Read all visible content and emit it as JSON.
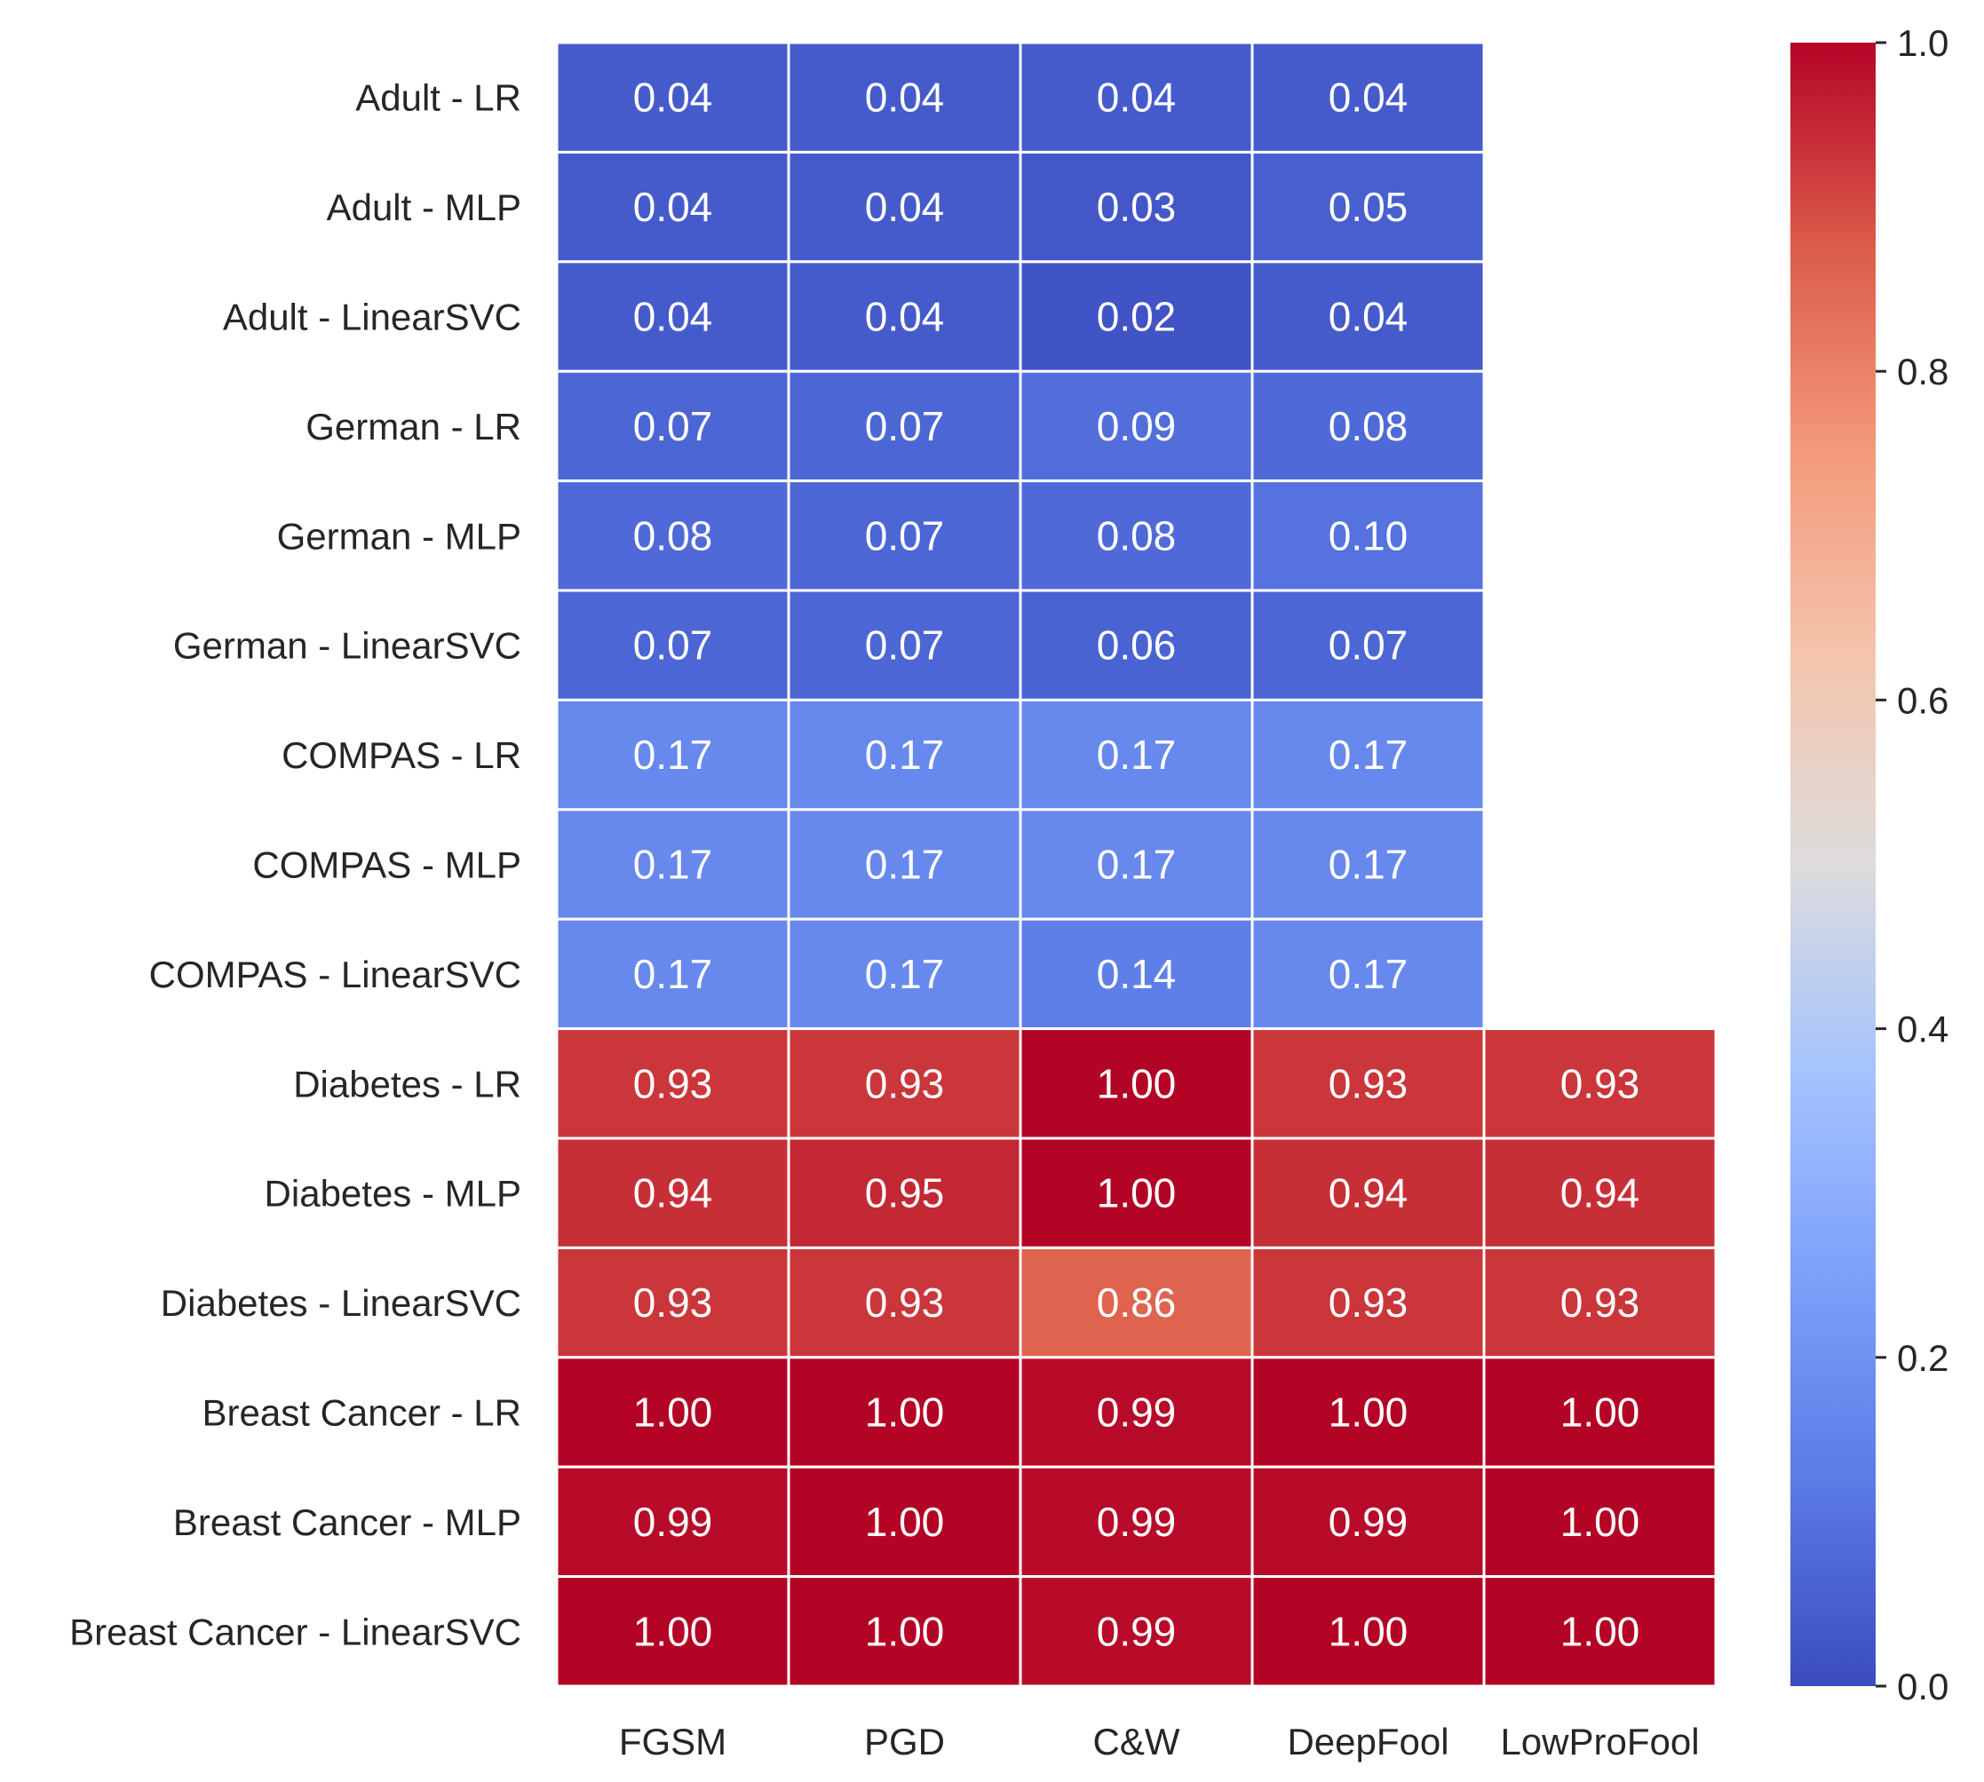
{
  "chart_data": {
    "type": "heatmap",
    "rows": [
      "Adult - LR",
      "Adult - MLP",
      "Adult - LinearSVC",
      "German - LR",
      "German - MLP",
      "German - LinearSVC",
      "COMPAS - LR",
      "COMPAS - MLP",
      "COMPAS - LinearSVC",
      "Diabetes - LR",
      "Diabetes - MLP",
      "Diabetes - LinearSVC",
      "Breast Cancer - LR",
      "Breast Cancer - MLP",
      "Breast Cancer - LinearSVC"
    ],
    "columns": [
      "FGSM",
      "PGD",
      "C&W",
      "DeepFool",
      "LowProFool"
    ],
    "values": [
      [
        0.04,
        0.04,
        0.04,
        0.04,
        null
      ],
      [
        0.04,
        0.04,
        0.03,
        0.05,
        null
      ],
      [
        0.04,
        0.04,
        0.02,
        0.04,
        null
      ],
      [
        0.07,
        0.07,
        0.09,
        0.08,
        null
      ],
      [
        0.08,
        0.07,
        0.08,
        0.1,
        null
      ],
      [
        0.07,
        0.07,
        0.06,
        0.07,
        null
      ],
      [
        0.17,
        0.17,
        0.17,
        0.17,
        null
      ],
      [
        0.17,
        0.17,
        0.17,
        0.17,
        null
      ],
      [
        0.17,
        0.17,
        0.14,
        0.17,
        null
      ],
      [
        0.93,
        0.93,
        1.0,
        0.93,
        0.93
      ],
      [
        0.94,
        0.95,
        1.0,
        0.94,
        0.94
      ],
      [
        0.93,
        0.93,
        0.86,
        0.93,
        0.93
      ],
      [
        1.0,
        1.0,
        0.99,
        1.0,
        1.0
      ],
      [
        0.99,
        1.0,
        0.99,
        0.99,
        1.0
      ],
      [
        1.0,
        1.0,
        0.99,
        1.0,
        1.0
      ]
    ],
    "colormap": "coolwarm",
    "vmin": 0.0,
    "vmax": 1.0,
    "colorbar_ticks": [
      "0.0",
      "0.2",
      "0.4",
      "0.6",
      "0.8",
      "1.0"
    ],
    "colorbar_tick_values": [
      0.0,
      0.2,
      0.4,
      0.6,
      0.8,
      1.0
    ],
    "colormap_stops": [
      {
        "v": 0.0,
        "color": "#3b4cc0"
      },
      {
        "v": 0.125,
        "color": "#5b7be6"
      },
      {
        "v": 0.25,
        "color": "#7da0f9"
      },
      {
        "v": 0.375,
        "color": "#a5c3fe"
      },
      {
        "v": 0.5,
        "color": "#dddcdc"
      },
      {
        "v": 0.625,
        "color": "#f4c5ad"
      },
      {
        "v": 0.75,
        "color": "#f49a7b"
      },
      {
        "v": 0.875,
        "color": "#dc5d4a"
      },
      {
        "v": 1.0,
        "color": "#b40426"
      }
    ],
    "title": "",
    "xlabel": "",
    "ylabel": ""
  }
}
